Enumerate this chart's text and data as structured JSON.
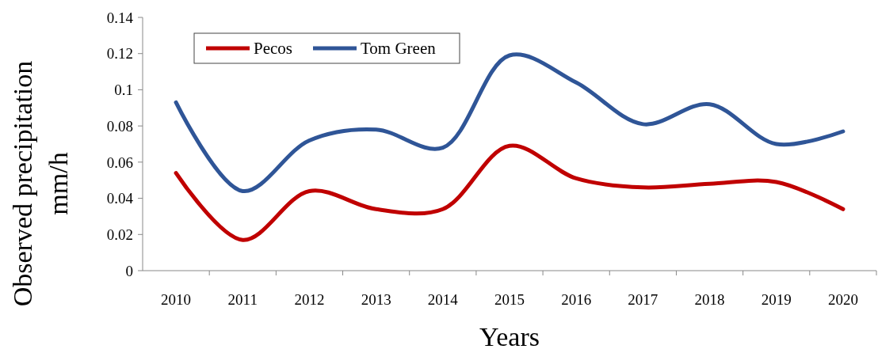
{
  "chart_data": {
    "type": "line",
    "xlabel": "Years",
    "ylabel": "Observed precipitation mm/h",
    "categories": [
      "2010",
      "2011",
      "2012",
      "2013",
      "2014",
      "2015",
      "2016",
      "2017",
      "2018",
      "2019",
      "2020"
    ],
    "series": [
      {
        "name": "Pecos",
        "color": "#c00000",
        "values": [
          0.054,
          0.017,
          0.044,
          0.034,
          0.034,
          0.069,
          0.051,
          0.046,
          0.048,
          0.049,
          0.034
        ]
      },
      {
        "name": "Tom Green",
        "color": "#2f5597",
        "values": [
          0.093,
          0.044,
          0.072,
          0.078,
          0.068,
          0.119,
          0.104,
          0.081,
          0.092,
          0.07,
          0.077
        ]
      }
    ],
    "ylim": [
      0,
      0.14
    ],
    "yticks": [
      0,
      0.02,
      0.04,
      0.06,
      0.08,
      0.1,
      0.12,
      0.14
    ],
    "grid": false,
    "legend": "top left",
    "marker": "none",
    "line_style": "solid"
  }
}
